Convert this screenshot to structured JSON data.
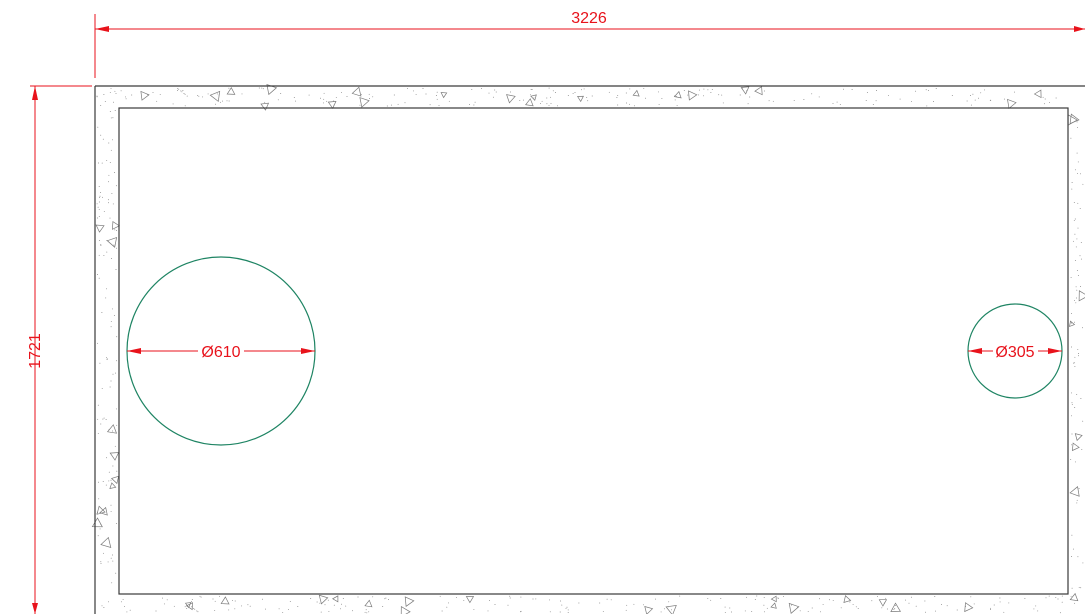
{
  "colors": {
    "dimension": "#e8121b",
    "opening": "#1e8463",
    "outline": "#3a3a3a",
    "hatch": "#7a7a7a",
    "background": "#ffffff"
  },
  "dimensions": {
    "overall_width": "3226",
    "overall_height": "1721"
  },
  "openings": [
    {
      "label": "Ø610"
    },
    {
      "label": "Ø305"
    }
  ]
}
